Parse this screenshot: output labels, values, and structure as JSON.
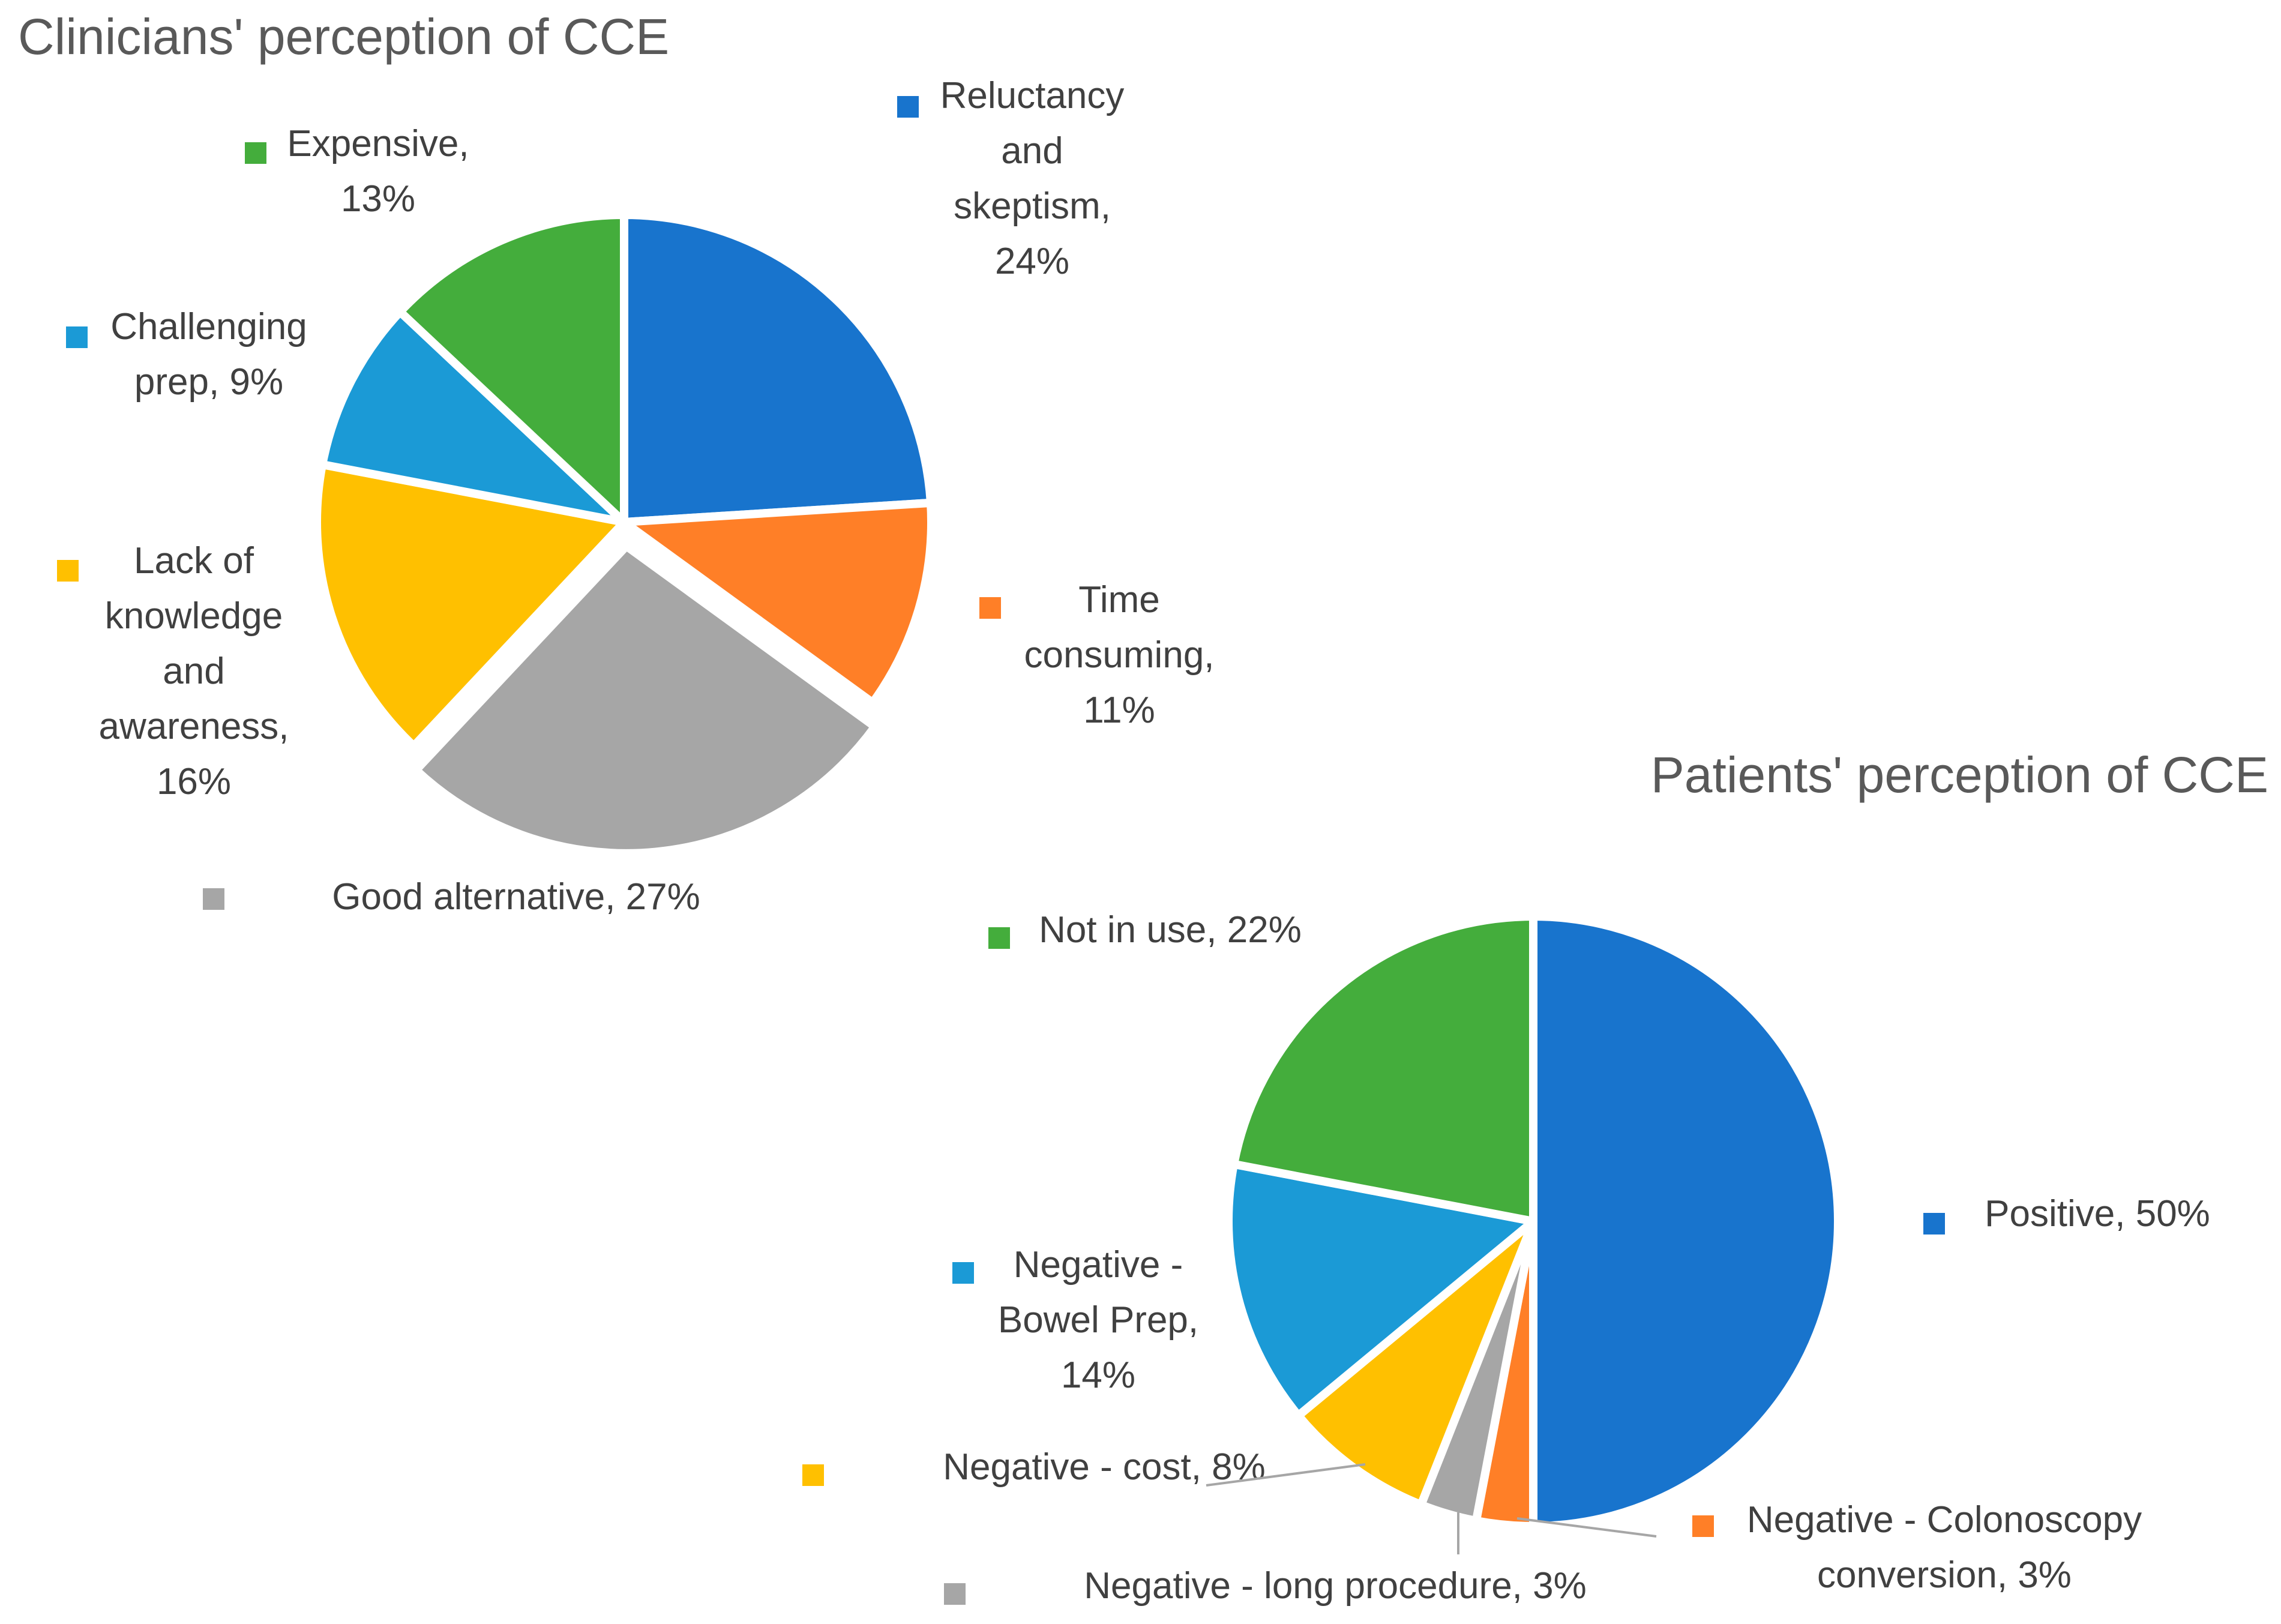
{
  "chart_data": [
    {
      "type": "pie",
      "title": "Clinicians' perception of CCE",
      "slices": [
        {
          "name": "Reluctancy and skeptism",
          "value": 24,
          "label": "24%",
          "color": "#1874CD",
          "label_lines": [
            "Reluctancy",
            "and",
            "skeptism,",
            "24%"
          ]
        },
        {
          "name": "Time consuming",
          "value": 11,
          "label": "11%",
          "color": "#FF7F27",
          "label_lines": [
            "Time",
            "consuming,",
            "11%"
          ]
        },
        {
          "name": "Good alternative",
          "value": 27,
          "label": "27%",
          "color": "#A6A6A6",
          "exploded": true,
          "label_lines": [
            "Good alternative, 27%"
          ]
        },
        {
          "name": "Lack of knowledge and awareness",
          "value": 16,
          "label": "16%",
          "color": "#FFC000",
          "label_lines": [
            "Lack of",
            "knowledge",
            "and",
            "awareness,",
            "16%"
          ]
        },
        {
          "name": "Challenging prep",
          "value": 9,
          "label": "9%",
          "color": "#1B9AD6",
          "label_lines": [
            "Challenging",
            "prep, 9%"
          ]
        },
        {
          "name": "Expensive",
          "value": 13,
          "label": "13%",
          "color": "#44AD3C",
          "label_lines": [
            "Expensive,",
            "13%"
          ]
        }
      ]
    },
    {
      "type": "pie",
      "title": "Patients' perception of CCE",
      "slices": [
        {
          "name": "Positive",
          "value": 50,
          "label": "50%",
          "color": "#1874CD",
          "label_lines": [
            "Positive, 50%"
          ]
        },
        {
          "name": "Negative - Colonoscopy conversion",
          "value": 3,
          "label": "3%",
          "color": "#FF7F27",
          "label_lines": [
            "Negative - Colonoscopy",
            "conversion, 3%"
          ]
        },
        {
          "name": "Negative - long procedure",
          "value": 3,
          "label": "3%",
          "color": "#A6A6A6",
          "label_lines": [
            "Negative - long procedure, 3%"
          ]
        },
        {
          "name": "Negative - cost",
          "value": 8,
          "label": "8%",
          "color": "#FFC000",
          "label_lines": [
            "Negative - cost, 8%"
          ]
        },
        {
          "name": "Negative - Bowel Prep",
          "value": 14,
          "label": "14%",
          "color": "#1B9AD6",
          "label_lines": [
            "Negative -",
            "Bowel Prep,",
            "14%"
          ]
        },
        {
          "name": "Not in use",
          "value": 22,
          "label": "22%",
          "color": "#44AD3C",
          "label_lines": [
            "Not in use, 22%"
          ]
        }
      ]
    }
  ]
}
